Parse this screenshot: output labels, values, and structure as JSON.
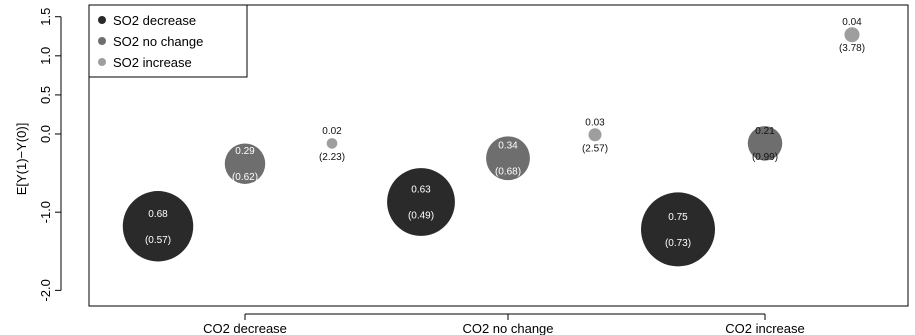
{
  "chart_data": {
    "type": "scatter",
    "title": "",
    "xlabel": "",
    "ylabel": "E[Y(1)−Y(0)]",
    "categories": [
      "CO2 decrease",
      "CO2 no change",
      "CO2 increase"
    ],
    "ylim": [
      -2.2,
      1.65
    ],
    "yticks": [
      "-2.0",
      "-1.0",
      "0.0",
      "0.5",
      "1.0",
      "1.5"
    ],
    "ytick_values": [
      -2.0,
      -1.0,
      0.0,
      0.5,
      1.0,
      1.5
    ],
    "grid": false,
    "legend_position": "top-left",
    "series": [
      {
        "name": "SO2 decrease",
        "color": "#2a2a2a",
        "points": [
          {
            "category": 0,
            "y": -1.18,
            "proportion": "0.68",
            "se": "(0.57)",
            "weight": 0.68
          },
          {
            "category": 1,
            "y": -0.87,
            "proportion": "0.63",
            "se": "(0.49)",
            "weight": 0.63
          },
          {
            "category": 2,
            "y": -1.22,
            "proportion": "0.75",
            "se": "(0.73)",
            "weight": 0.75
          }
        ]
      },
      {
        "name": "SO2 no change",
        "color": "#6e6e6e",
        "points": [
          {
            "category": 0,
            "y": -0.38,
            "proportion": "0.29",
            "se": "(0.62)",
            "weight": 0.29
          },
          {
            "category": 1,
            "y": -0.31,
            "proportion": "0.34",
            "se": "(0.68)",
            "weight": 0.34
          },
          {
            "category": 2,
            "y": -0.12,
            "proportion": "0.21",
            "se": "(0.99)",
            "weight": 0.21
          }
        ]
      },
      {
        "name": "SO2 increase",
        "color": "#9e9e9e",
        "points": [
          {
            "category": 0,
            "y": -0.12,
            "proportion": "0.02",
            "se": "(2.23)",
            "weight": 0.02
          },
          {
            "category": 1,
            "y": -0.01,
            "proportion": "0.03",
            "se": "(2.57)",
            "weight": 0.03
          },
          {
            "category": 2,
            "y": 1.27,
            "proportion": "0.04",
            "se": "(3.78)",
            "weight": 0.04
          }
        ]
      }
    ]
  }
}
